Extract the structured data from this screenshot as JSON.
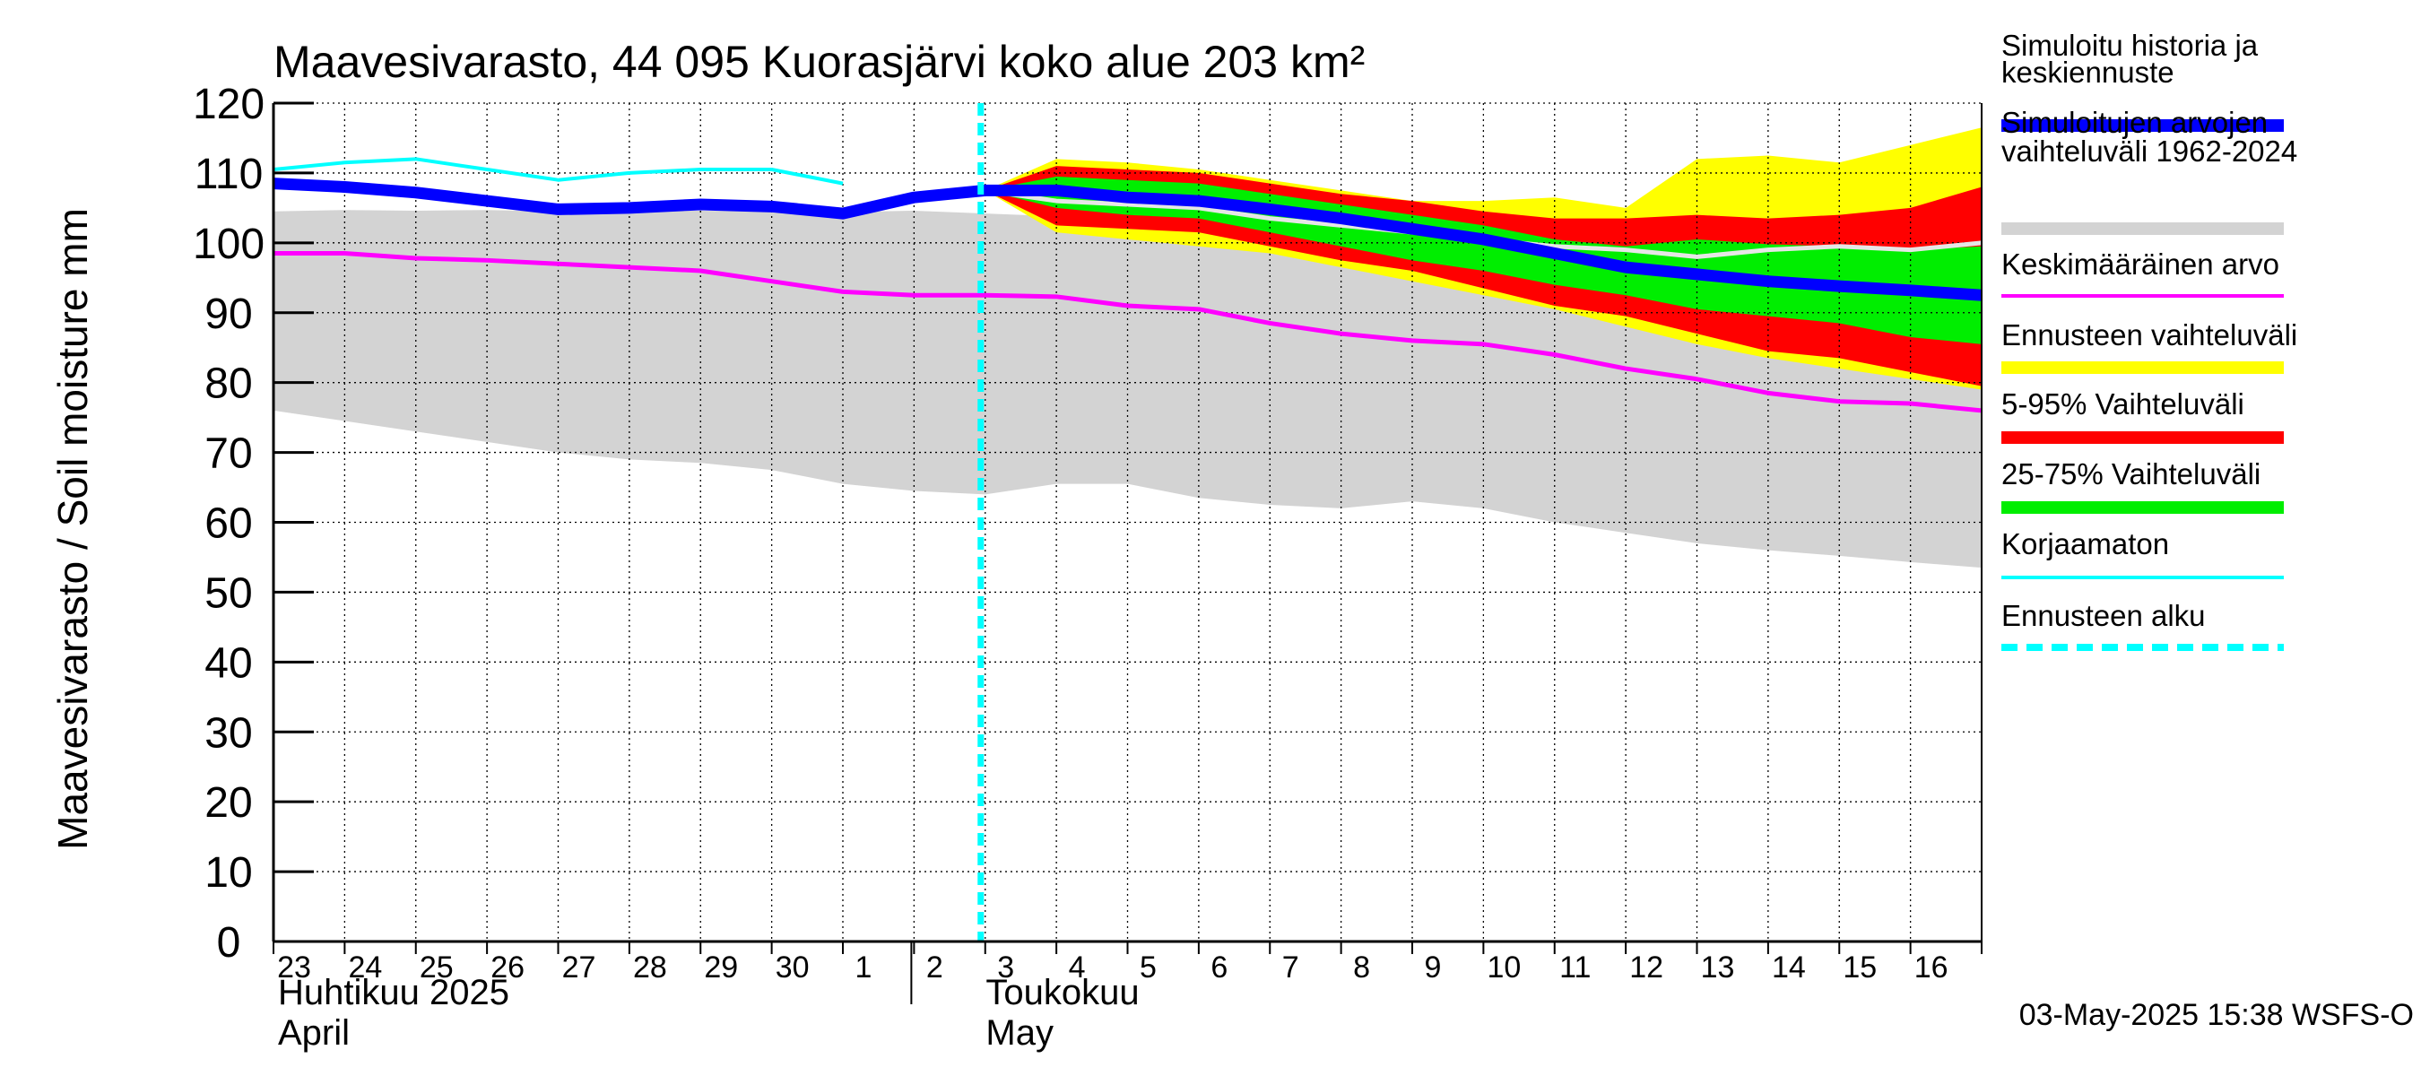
{
  "chart_data": {
    "type": "area",
    "title": "Maavesivarasto, 44 095 Kuorasjärvi koko alue 203 km²",
    "ylabel": "Maavesivarasto / Soil moisture   mm",
    "ylim": [
      0,
      120
    ],
    "yticks": [
      0,
      10,
      20,
      30,
      40,
      50,
      60,
      70,
      80,
      90,
      100,
      110,
      120
    ],
    "grid": true,
    "x_days": 24,
    "day_labels": [
      "23",
      "24",
      "25",
      "26",
      "27",
      "28",
      "29",
      "30",
      "1",
      "2",
      "3",
      "4",
      "5",
      "6",
      "7",
      "8",
      "9",
      "10",
      "11",
      "12",
      "13",
      "14",
      "15",
      "16"
    ],
    "month_labels": [
      {
        "line1": "Huhtikuu  2025",
        "line2": "April",
        "at_day": 0
      },
      {
        "line1": "Toukokuu",
        "line2": "May",
        "at_day": 9
      }
    ],
    "forecast_start_day": 10,
    "x": [
      0,
      1,
      2,
      3,
      4,
      5,
      6,
      7,
      8,
      9,
      10,
      11,
      12,
      13,
      14,
      15,
      16,
      17,
      18,
      19,
      20,
      21,
      22,
      23,
      24
    ],
    "series": [
      {
        "name": "Simuloitujen arvojen vaihteluväli 1962-2024",
        "kind": "band",
        "color": "#d3d3d3",
        "x": [
          0,
          1,
          2,
          3,
          4,
          5,
          6,
          7,
          8,
          9,
          10,
          11,
          12,
          13,
          14,
          15,
          16,
          17,
          18,
          19,
          20,
          21,
          22,
          23,
          24
        ],
        "upper": [
          104.5,
          104.7,
          104.6,
          104.7,
          104.5,
          104.6,
          104.6,
          104.5,
          104.4,
          104.6,
          104.2,
          103.8,
          103.5,
          102.5,
          102.0,
          101.5,
          101.0,
          100.5,
          100.2,
          100.5,
          100.5,
          100.2,
          100.3,
          100.3,
          100.2
        ],
        "lower": [
          76,
          74.5,
          73,
          71.5,
          70,
          69,
          68.5,
          67.5,
          65.5,
          64.5,
          64,
          65.5,
          65.5,
          63.5,
          62.5,
          62,
          63,
          62,
          60,
          58.5,
          57,
          56,
          55.2,
          54.3,
          53.5
        ]
      },
      {
        "name": "Ennusteen vaihteluväli",
        "kind": "band",
        "color": "#ffff00",
        "x": [
          10,
          11,
          12,
          13,
          14,
          15,
          16,
          17,
          18,
          19,
          20,
          21,
          22,
          23,
          24
        ],
        "upper": [
          107.5,
          112,
          111.5,
          110.5,
          109,
          107.5,
          106,
          106,
          106.5,
          105,
          112,
          112.5,
          111.5,
          114,
          116.5
        ],
        "lower": [
          107.5,
          101.5,
          100.5,
          99.5,
          98.5,
          96.5,
          94.5,
          92.5,
          90.5,
          88,
          85.5,
          83.5,
          82,
          80.5,
          79
        ]
      },
      {
        "name": "5-95% Vaihteluväli",
        "kind": "band",
        "color": "#ff0000",
        "x": [
          10,
          11,
          12,
          13,
          14,
          15,
          16,
          17,
          18,
          19,
          20,
          21,
          22,
          23,
          24
        ],
        "upper": [
          107.5,
          111,
          110.5,
          110,
          108.5,
          107,
          106,
          104.5,
          103.5,
          103.5,
          104,
          103.5,
          104,
          105,
          108
        ],
        "lower": [
          107.5,
          102.5,
          102,
          101.5,
          99.5,
          97.5,
          96,
          93.5,
          91,
          89.5,
          87,
          84.5,
          83.5,
          81.5,
          79.5
        ]
      },
      {
        "name": "25-75% Vaihteluväli",
        "kind": "band",
        "color": "#00ee00",
        "x": [
          10,
          11,
          12,
          13,
          14,
          15,
          16,
          17,
          18,
          19,
          20,
          21,
          22,
          23,
          24
        ],
        "upper": [
          107.5,
          109.5,
          109,
          108.5,
          107,
          105.5,
          104,
          102.5,
          100.5,
          99.5,
          100.5,
          99.8,
          99.5,
          99,
          99.5
        ],
        "lower": [
          107.5,
          105,
          104,
          103.5,
          101.5,
          99.5,
          97.5,
          96,
          94,
          92.5,
          90.5,
          89.5,
          88.5,
          86.5,
          85.5
        ]
      },
      {
        "name": "Keskimääräinen arvo",
        "kind": "line",
        "color": "#ff00ff",
        "width": 5,
        "x": [
          0,
          1,
          2,
          3,
          4,
          5,
          6,
          7,
          8,
          9,
          10,
          11,
          12,
          13,
          14,
          15,
          16,
          17,
          18,
          19,
          20,
          21,
          22,
          23,
          24
        ],
        "y": [
          98.5,
          98.5,
          97.8,
          97.5,
          97,
          96.5,
          96,
          94.5,
          93,
          92.5,
          92.5,
          92.3,
          91,
          90.5,
          88.5,
          87,
          86,
          85.5,
          84,
          82,
          80.5,
          78.5,
          77.3,
          77,
          76
        ]
      },
      {
        "name": "Simulated median (gray line)",
        "kind": "line",
        "color": "#e6e6e6",
        "width": 5,
        "x": [
          10,
          11,
          12,
          13,
          14,
          15,
          16,
          17,
          18,
          19,
          20,
          21,
          22,
          23,
          24
        ],
        "y": [
          107.5,
          106,
          105.5,
          105,
          103.5,
          102.5,
          101.5,
          100.5,
          99.5,
          99,
          98,
          99,
          99.5,
          99,
          100
        ]
      },
      {
        "name": "Korjaamaton",
        "kind": "line",
        "color": "#00ffff",
        "width": 4,
        "x": [
          0,
          1,
          2,
          3,
          4,
          5,
          6,
          7,
          8
        ],
        "y": [
          110.5,
          111.5,
          112,
          110.5,
          109,
          110,
          110.5,
          110.5,
          108.5
        ]
      },
      {
        "name": "Simuloitu historia ja keskiennuste",
        "kind": "line",
        "color": "#0000ff",
        "width": 13,
        "x": [
          0,
          1,
          2,
          3,
          4,
          5,
          6,
          7,
          8,
          9,
          10,
          11,
          12,
          13,
          14,
          15,
          16,
          17,
          18,
          19,
          20,
          21,
          22,
          23,
          24
        ],
        "y": [
          108.5,
          108,
          107.2,
          106,
          104.8,
          105,
          105.5,
          105.2,
          104.2,
          106.5,
          107.5,
          107.5,
          106.5,
          106,
          104.8,
          103.5,
          102,
          100.5,
          98.5,
          96.5,
          95.5,
          94.5,
          93.8,
          93.2,
          92.5
        ]
      }
    ],
    "legend": [
      {
        "label": "Simuloitu historia ja keskiennuste",
        "color": "#0000ff",
        "style": "thick"
      },
      {
        "label": "Simuloitujen arvojen vaihteluväli 1962-2024",
        "color": "#d3d3d3",
        "style": "thick"
      },
      {
        "label": "Keskimääräinen arvo",
        "color": "#ff00ff",
        "style": "thin"
      },
      {
        "label": "Ennusteen vaihteluväli",
        "color": "#ffff00",
        "style": "thick"
      },
      {
        "label": "5-95% Vaihteluväli",
        "color": "#ff0000",
        "style": "thick"
      },
      {
        "label": "25-75% Vaihteluväli",
        "color": "#00ee00",
        "style": "thick"
      },
      {
        "label": "Korjaamaton",
        "color": "#00ffff",
        "style": "thin"
      },
      {
        "label": "Ennusteen alku",
        "color": "#00ffff",
        "style": "dashed"
      }
    ],
    "timestamp": "03-May-2025 15:38 WSFS-O"
  }
}
